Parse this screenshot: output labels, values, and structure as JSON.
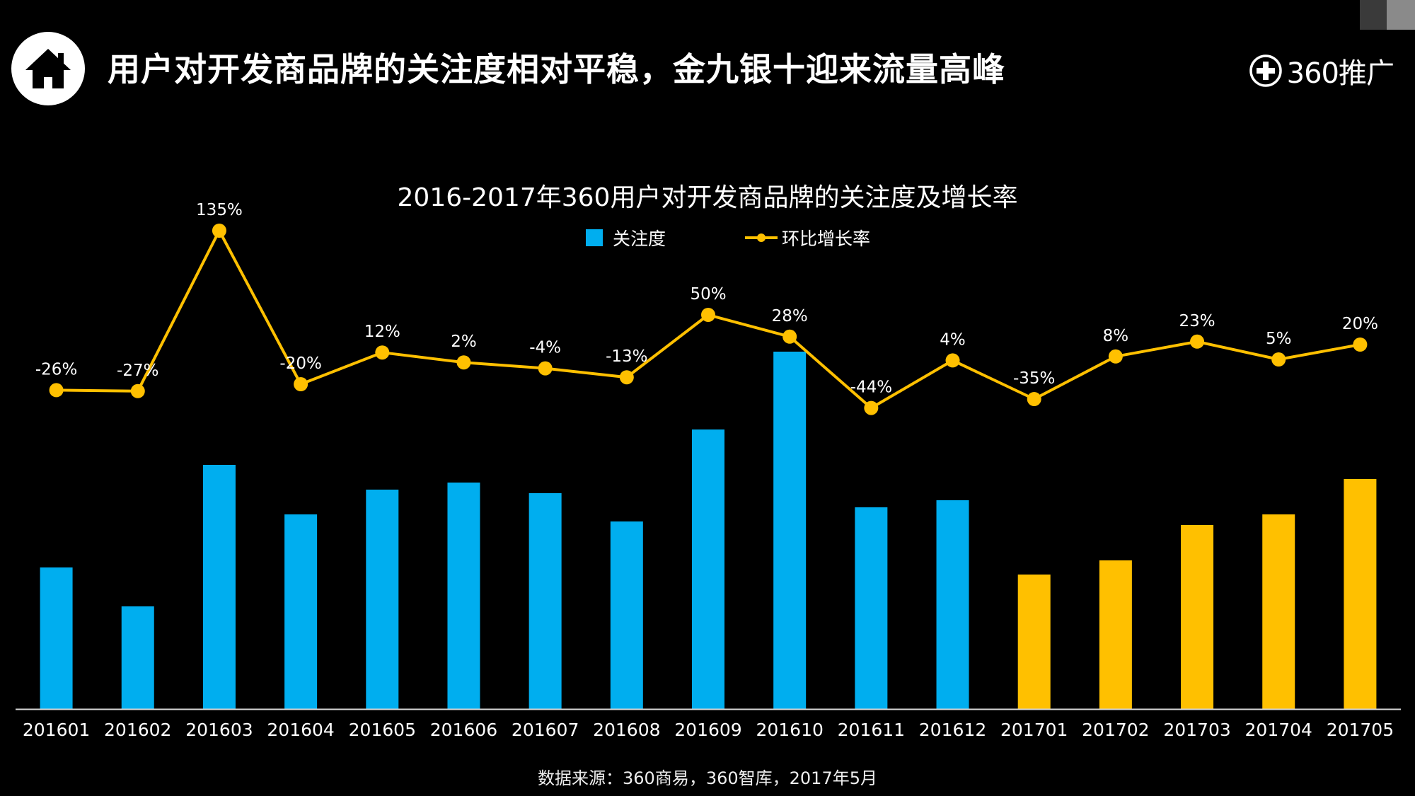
{
  "header": {
    "title": "用户对开发商品牌的关注度相对平稳，金九银十迎来流量高峰",
    "brand": "360推广"
  },
  "colors": {
    "background": "#000000",
    "bar_2016": "#00AEEF",
    "bar_2017": "#FFC000",
    "line": "#FFC000"
  },
  "source": "数据来源：360商易，360智库，2017年5月",
  "chart_data": {
    "type": "bar",
    "title": "2016-2017年360用户对开发商品牌的关注度及增长率",
    "categories": [
      "201601",
      "201602",
      "201603",
      "201604",
      "201605",
      "201606",
      "201607",
      "201608",
      "201609",
      "201610",
      "201611",
      "201612",
      "201701",
      "201702",
      "201703",
      "201704",
      "201705"
    ],
    "series": [
      {
        "name": "关注度",
        "type": "bar",
        "values": [
          40,
          29,
          69,
          55,
          62,
          64,
          61,
          53,
          79,
          101,
          57,
          59,
          38,
          42,
          52,
          55,
          65
        ],
        "year_split_index": 12
      },
      {
        "name": "环比增长率",
        "type": "line",
        "values": [
          -26,
          -27,
          135,
          -20,
          12,
          2,
          -4,
          -13,
          50,
          28,
          -44,
          4,
          -35,
          8,
          23,
          5,
          20
        ],
        "labels": [
          "-26%",
          "-27%",
          "135%",
          "-20%",
          "12%",
          "2%",
          "-4%",
          "-13%",
          "50%",
          "28%",
          "-44%",
          "4%",
          "-35%",
          "8%",
          "23%",
          "5%",
          "20%"
        ],
        "unit": "%"
      }
    ],
    "xlabel": "",
    "ylabel": "",
    "legend": [
      "关注度",
      "环比增长率"
    ],
    "legend_position": "top-center",
    "grid": false
  }
}
